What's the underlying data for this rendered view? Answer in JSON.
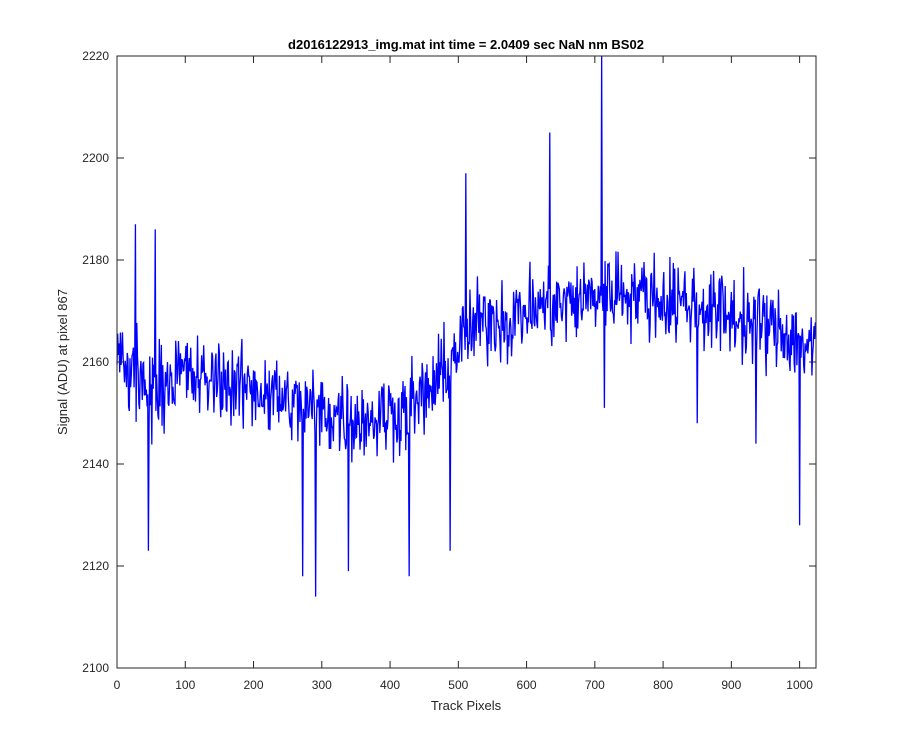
{
  "chart_data": {
    "type": "line",
    "title": "d2016122913_img.mat int time = 2.0409 sec  NaN nm BS02",
    "xlabel": "Track Pixels",
    "ylabel": "Signal (ADU) at pixel 867",
    "xlim": [
      0,
      1024
    ],
    "ylim": [
      2100,
      2220
    ],
    "xticks": [
      0,
      100,
      200,
      300,
      400,
      500,
      600,
      700,
      800,
      900,
      1000
    ],
    "yticks": [
      2100,
      2120,
      2140,
      2160,
      2180,
      2200,
      2220
    ],
    "grid": false,
    "line_color": "#0000ff",
    "series": [
      {
        "x": [
          0,
          25,
          50,
          75,
          100,
          125,
          150,
          175,
          200,
          225,
          250,
          275,
          300,
          325,
          350,
          375,
          400,
          425,
          450,
          475,
          500,
          525,
          550,
          575,
          600,
          625,
          650,
          675,
          700,
          725,
          750,
          775,
          800,
          825,
          850,
          875,
          900,
          925,
          950,
          975,
          1000,
          1023
        ],
        "values": [
          2161,
          2158,
          2154,
          2157,
          2158,
          2156,
          2157,
          2155,
          2155,
          2154,
          2152,
          2151,
          2150,
          2150,
          2149,
          2149,
          2150,
          2151,
          2153,
          2157,
          2163,
          2167,
          2169,
          2168,
          2170,
          2171,
          2171,
          2172,
          2173,
          2174,
          2174,
          2173,
          2172,
          2172,
          2171,
          2170,
          2169,
          2168,
          2167,
          2166,
          2164,
          2163
        ]
      }
    ],
    "peaks": [
      {
        "x": 27,
        "y": 2187
      },
      {
        "x": 46,
        "y": 2123
      },
      {
        "x": 56,
        "y": 2186
      },
      {
        "x": 272,
        "y": 2118
      },
      {
        "x": 291,
        "y": 2114
      },
      {
        "x": 339,
        "y": 2119
      },
      {
        "x": 428,
        "y": 2118
      },
      {
        "x": 488,
        "y": 2123
      },
      {
        "x": 511,
        "y": 2197
      },
      {
        "x": 634,
        "y": 2205
      },
      {
        "x": 710,
        "y": 2221
      },
      {
        "x": 714,
        "y": 2151
      },
      {
        "x": 850,
        "y": 2148
      },
      {
        "x": 936,
        "y": 2144
      },
      {
        "x": 1000,
        "y": 2128
      }
    ],
    "noise_amplitude": 12
  }
}
